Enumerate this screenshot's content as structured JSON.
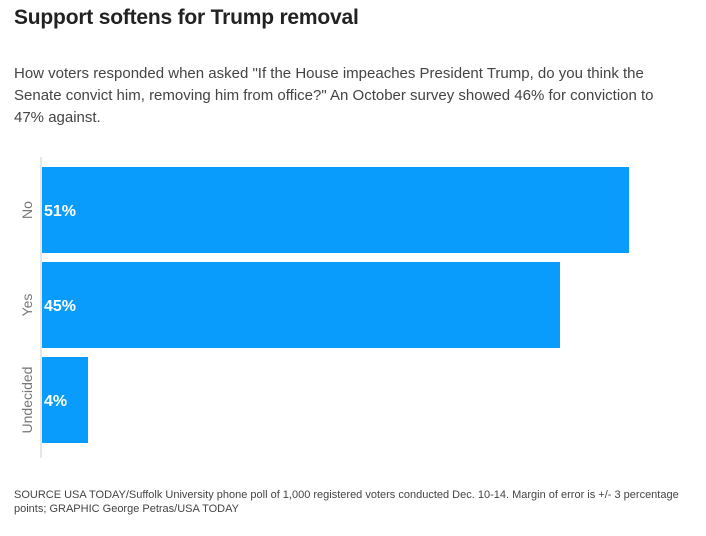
{
  "header": {
    "title": "Support softens for Trump removal",
    "subtitle": "How voters responded when asked \"If the House impeaches President Trump, do you think the Senate convict him, removing him from office?\" An October survey showed 46% for conviction to 47% against."
  },
  "footer": {
    "source": "SOURCE USA TODAY/Suffolk University phone poll of 1,000 registered voters conducted Dec. 10-14. Margin of error is +/- 3 percentage points; GRAPHIC George Petras/USA TODAY"
  },
  "colors": {
    "bar": "#0A9CFC",
    "bar_label": "#ffffff",
    "axis": "#cccccc",
    "category_label": "#777777"
  },
  "chart_data": {
    "type": "bar",
    "orientation": "horizontal",
    "categories": [
      "No",
      "Yes",
      "Undecided"
    ],
    "values": [
      51,
      45,
      4
    ],
    "labels": [
      "51%",
      "45%",
      "4%"
    ],
    "unit": "%",
    "title": "",
    "xlabel": "",
    "ylabel": "",
    "xlim": [
      0,
      51
    ],
    "grid": false,
    "legend": "none"
  }
}
